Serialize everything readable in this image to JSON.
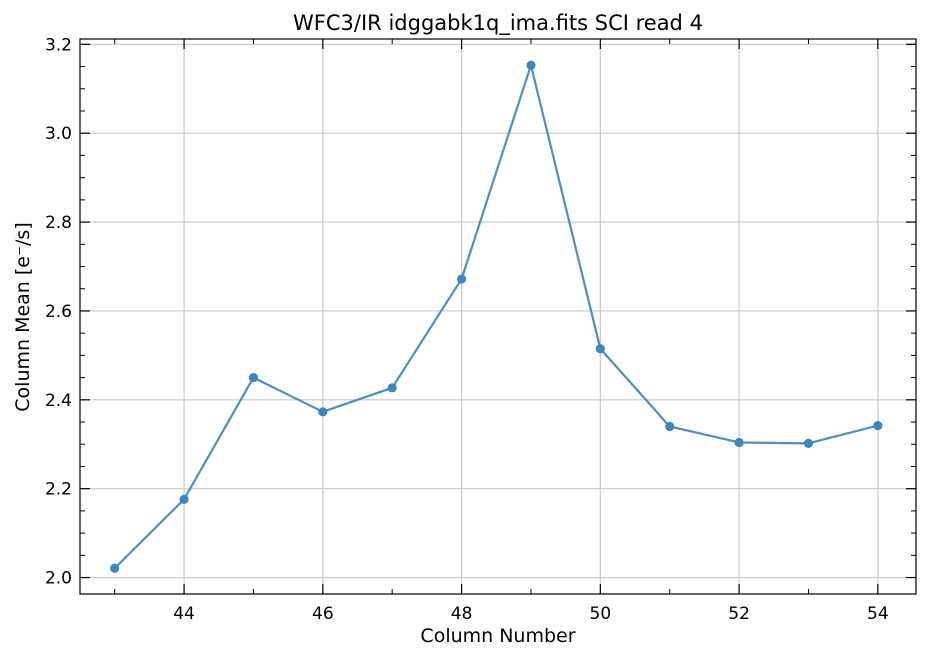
{
  "chart_data": {
    "type": "line",
    "title": "WFC3/IR idggabk1q_ima.fits SCI read 4",
    "xlabel": "Column Number",
    "ylabel": "Column Mean [e⁻/s]",
    "xlim": [
      42.5,
      54.55
    ],
    "ylim": [
      1.963,
      3.212
    ],
    "xticks": [
      44,
      46,
      48,
      50,
      52,
      54
    ],
    "xtick_labels": [
      "44",
      "46",
      "48",
      "50",
      "52",
      "54"
    ],
    "yticks": [
      2.0,
      2.2,
      2.4,
      2.6,
      2.8,
      3.0,
      3.2
    ],
    "ytick_labels": [
      "2.0",
      "2.2",
      "2.4",
      "2.6",
      "2.8",
      "3.0",
      "3.2"
    ],
    "grid": true,
    "color": "#4a90c2",
    "series": [
      {
        "x": [
          43,
          44,
          45,
          46,
          47,
          48,
          49,
          50,
          51,
          52,
          53,
          54
        ],
        "values": [
          2.021,
          2.176,
          2.45,
          2.373,
          2.427,
          2.672,
          3.153,
          2.515,
          2.34,
          2.304,
          2.302,
          2.342
        ]
      }
    ]
  }
}
